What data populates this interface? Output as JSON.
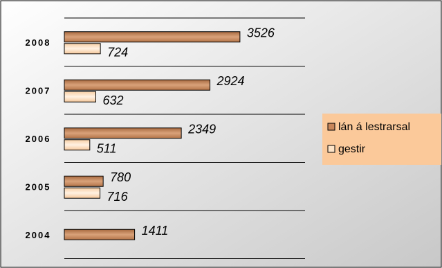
{
  "chart_data": {
    "type": "bar",
    "orientation": "horizontal",
    "categories": [
      "2008",
      "2007",
      "2006",
      "2005",
      "2004"
    ],
    "series": [
      {
        "name": "lán á lestrarsal",
        "values": [
          3526,
          2924,
          2349,
          780,
          1411
        ],
        "color": "#c8865a"
      },
      {
        "name": "gestir",
        "values": [
          724,
          632,
          511,
          716,
          null
        ],
        "color": "#fde3c6"
      }
    ],
    "xlim": [
      0,
      5000
    ],
    "grid": true,
    "legend_position": "right",
    "colors": {
      "plot_background_start": "#ffffff",
      "plot_background_end": "#cccccc",
      "legend_background": "#fbc99a",
      "gridline": "#000000"
    }
  }
}
